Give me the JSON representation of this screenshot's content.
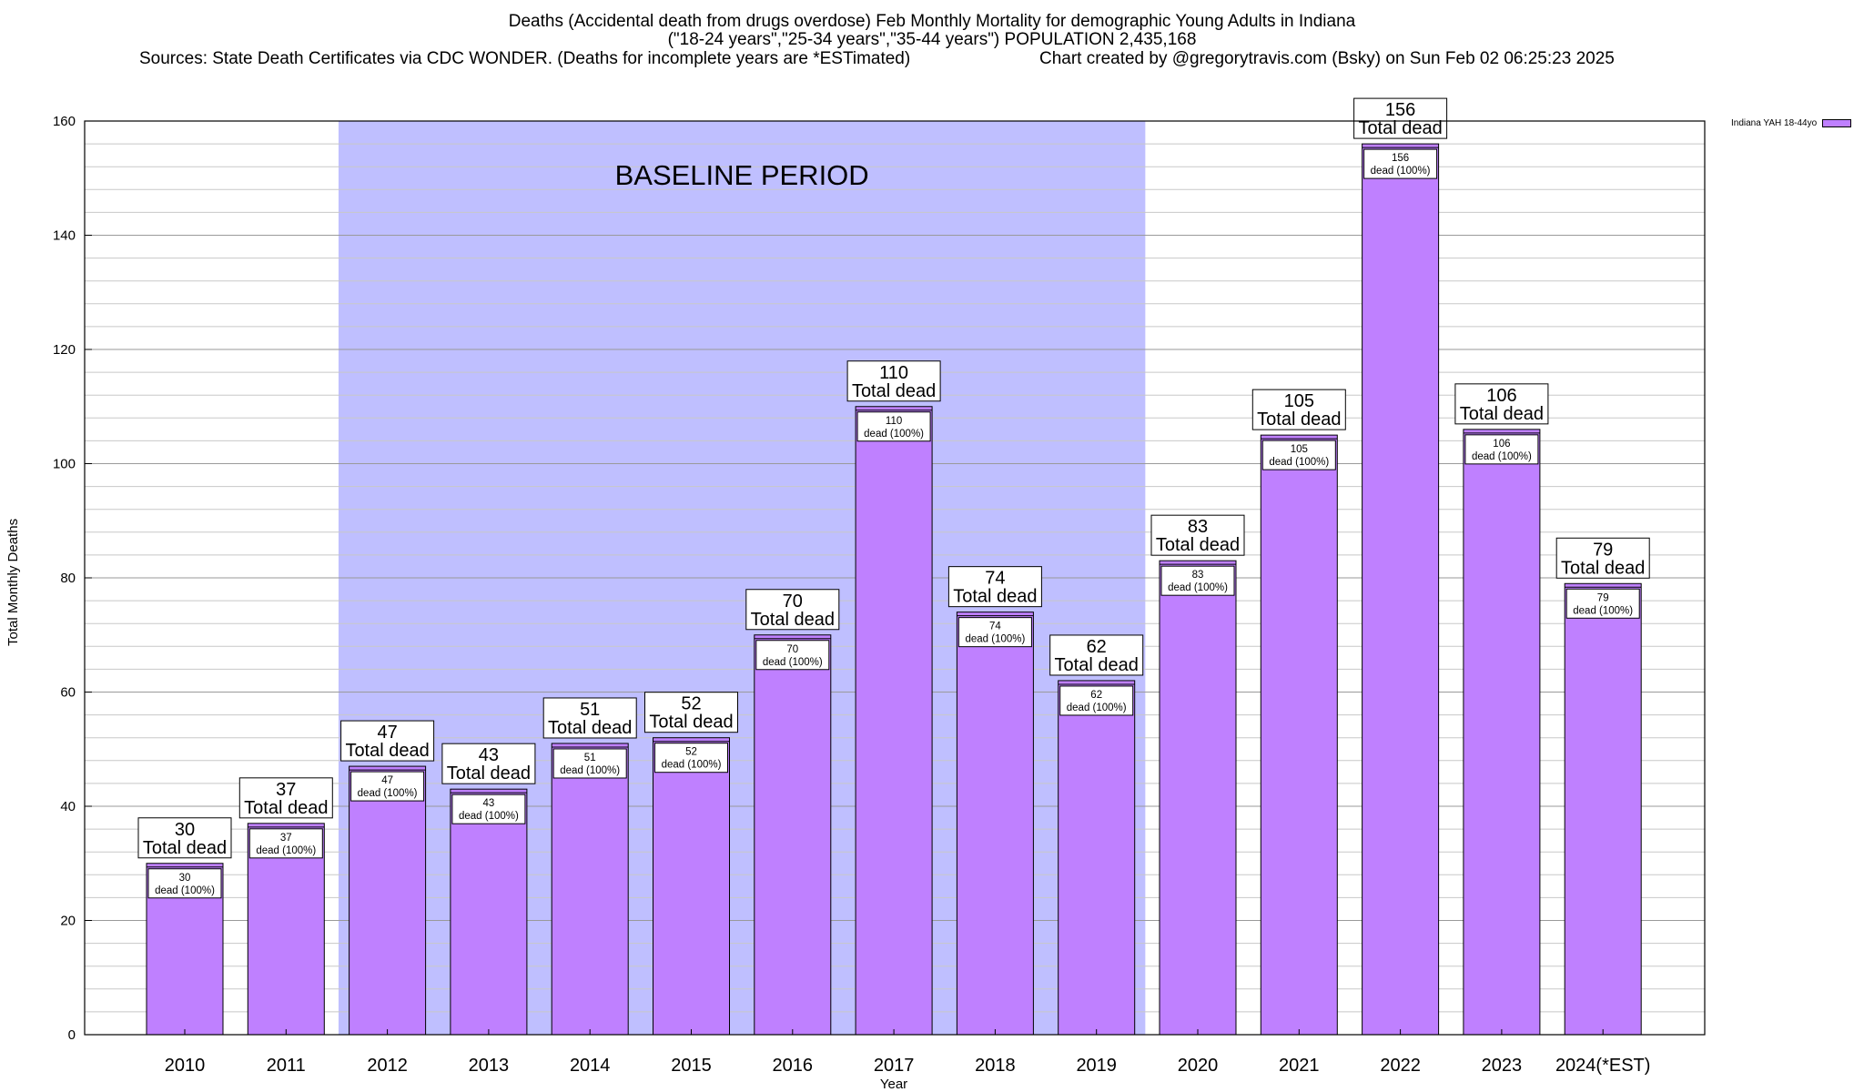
{
  "header": {
    "title_line1": "Deaths (Accidental death from drugs overdose) Feb Monthly Mortality for demographic Young Adults in Indiana",
    "title_line2": "(\"18-24 years\",\"25-34 years\",\"35-44 years\") POPULATION 2,435,168",
    "sources": "Sources: State Death Certificates via CDC WONDER. (Deaths for incomplete years are *ESTimated)",
    "credit": "Chart created by @gregorytravis.com (Bsky) on Sun Feb 02 06:25:23 2025"
  },
  "colors": {
    "bar_fill": "#bf80ff",
    "baseline_fill": "#bfbfff",
    "grid": "#c8c8c8",
    "axis": "#000000"
  },
  "chart_data": {
    "type": "bar",
    "title": "Deaths (Accidental death from drugs overdose) Feb Monthly Mortality for demographic Young Adults in Indiana",
    "xlabel": "Year",
    "ylabel": "Total Monthly Deaths",
    "ylim": [
      0,
      160
    ],
    "yticks": [
      0,
      20,
      40,
      60,
      80,
      100,
      120,
      140,
      160
    ],
    "grid": true,
    "legend_position": "top-right",
    "categories": [
      "2010",
      "2011",
      "2012",
      "2013",
      "2014",
      "2015",
      "2016",
      "2017",
      "2018",
      "2019",
      "2020",
      "2021",
      "2022",
      "2023",
      "2024(*EST)"
    ],
    "series": [
      {
        "name": "Indiana YAH 18-44yo",
        "values": [
          30,
          37,
          47,
          43,
          51,
          52,
          70,
          110,
          74,
          62,
          83,
          105,
          156,
          106,
          79
        ]
      }
    ],
    "total_label": "Total dead",
    "inner_label": "dead (100%)",
    "shaded_region": {
      "label": "BASELINE PERIOD",
      "from_category": "2012",
      "to_category": "2019"
    }
  }
}
